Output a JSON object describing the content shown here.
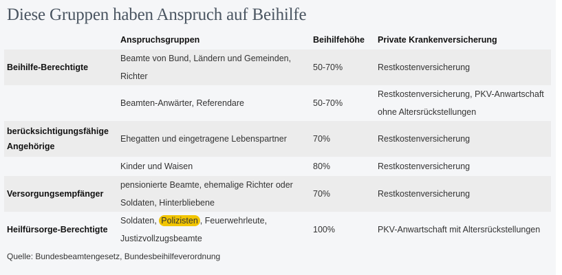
{
  "title": "Diese Gruppen haben Anspruch auf Beihilfe",
  "table": {
    "headers": [
      "",
      "Anspruchsgruppen",
      "Beihilfehöhe",
      "Private Krankenversicherung"
    ],
    "rows": [
      {
        "group": "Beihilfe-Berechtigte",
        "members": "Beamte von Bund, Ländern und Gemeinden, Richter",
        "rate": "50-70%",
        "pkv": "Restkostenversicherung"
      },
      {
        "group": "",
        "members": "Beamten-Anwärter, Referendare",
        "rate": "50-70%",
        "pkv": "Restkostenversicherung, PKV-Anwartschaft ohne Altersrückstellungen"
      },
      {
        "group": "berücksichtigungsfähige Angehörige",
        "members": "Ehegatten und eingetragene Lebenspartner",
        "rate": "70%",
        "pkv": "Restkostenversicherung"
      },
      {
        "group": "",
        "members": "Kinder und Waisen",
        "rate": "80%",
        "pkv": "Restkostenversicherung"
      },
      {
        "group": "Versorgungsempfänger",
        "members": "pensionierte Beamte, ehemalige Richter oder Soldaten, Hinterbliebene",
        "rate": "70%",
        "pkv": "Restkostenversicherung"
      },
      {
        "group": "Heilfürsorge-Berechtigte",
        "members_pre": "Soldaten, ",
        "members_highlight": "Polizisten",
        "members_post": ", Feuerwehrleute, Justizvollzugsbeamte",
        "rate": "100%",
        "pkv": "PKV-Anwartschaft mit Altersrückstellungen"
      }
    ]
  },
  "source": "Quelle: Bundesbeamtengesetz, Bundesbeihilfeverordnung",
  "colors": {
    "highlight": "#f2c500",
    "row_alt": "#ececec",
    "background": "#f5f6f8"
  }
}
